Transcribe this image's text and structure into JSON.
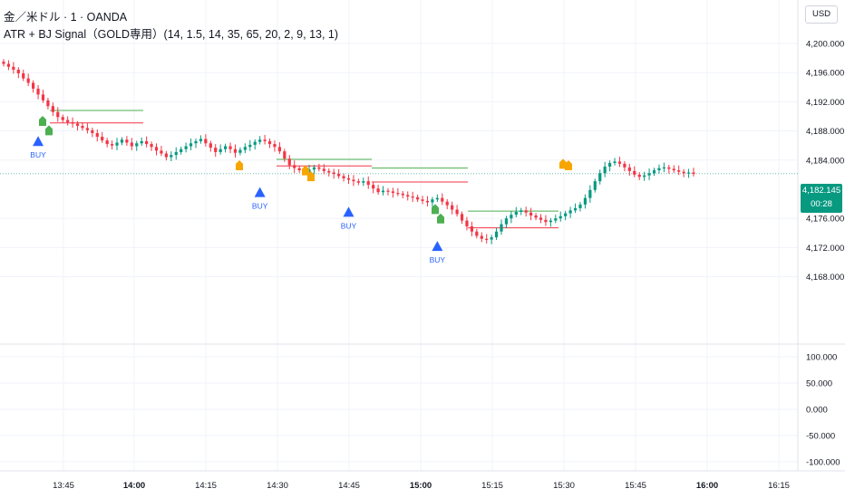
{
  "header": {
    "symbol_line": "金／米ドル · 1 · OANDA",
    "indicator_line": "ATR + BJ Signal（GOLD専用）(14, 1.5, 14, 35, 65, 20, 2, 9, 13, 1)"
  },
  "currency_button": "USD",
  "current_price": {
    "label": "4,182.145",
    "countdown": "00:28"
  },
  "colors": {
    "up": "#089981",
    "down": "#f23645",
    "buy": "#2962ff",
    "green_flag": "#4caf50",
    "orange_flag": "#f7a600"
  },
  "chart_data": {
    "type": "candlestick",
    "price_axis": {
      "ticks": [
        "4,200.000",
        "4,196.000",
        "4,192.000",
        "4,188.000",
        "4,184.000",
        "4,176.000",
        "4,172.000",
        "4,168.000"
      ],
      "tick_values": [
        4200,
        4196,
        4192,
        4188,
        4184,
        4176,
        4172,
        4168
      ]
    },
    "osc_axis": {
      "ticks": [
        "100.000",
        "50.000",
        "0.000",
        "-50.000",
        "-100.000"
      ],
      "tick_values": [
        100,
        50,
        0,
        -50,
        -100
      ]
    },
    "time_axis": {
      "ticks": [
        "13:45",
        "14:00",
        "14:15",
        "14:30",
        "14:45",
        "15:00",
        "15:15",
        "15:30",
        "15:45",
        "16:00",
        "16:15"
      ],
      "bold": [
        false,
        true,
        false,
        false,
        false,
        true,
        false,
        false,
        false,
        true,
        false
      ]
    },
    "close_path": [
      4197.2,
      4196.8,
      4196.4,
      4195.9,
      4195.2,
      4194.6,
      4193.8,
      4193.0,
      4192.2,
      4191.4,
      4190.6,
      4189.9,
      4189.5,
      4189.2,
      4189.0,
      4188.7,
      4188.4,
      4188.1,
      4187.7,
      4187.2,
      4186.7,
      4186.2,
      4186.0,
      4186.4,
      4186.8,
      4186.4,
      4185.9,
      4186.3,
      4186.6,
      4186.2,
      4185.8,
      4185.3,
      4184.9,
      4184.4,
      4184.7,
      4185.1,
      4185.5,
      4185.9,
      4186.3,
      4186.6,
      4186.9,
      4186.3,
      4185.7,
      4185.1,
      4185.5,
      4185.9,
      4185.5,
      4185.0,
      4185.4,
      4185.8,
      4186.1,
      4186.5,
      4186.8,
      4186.6,
      4186.2,
      4185.8,
      4185.2,
      4184.2,
      4183.3,
      4182.9,
      4182.6,
      4182.4,
      4182.7,
      4183.0,
      4182.8,
      4182.5,
      4182.3,
      4182.1,
      4181.8,
      4181.5,
      4181.3,
      4181.1,
      4180.9,
      4181.1,
      4180.6,
      4180.1,
      4179.6,
      4179.8,
      4179.7,
      4179.5,
      4179.4,
      4179.2,
      4179.0,
      4178.9,
      4178.6,
      4178.4,
      4178.2,
      4178.6,
      4178.8,
      4178.3,
      4177.8,
      4177.2,
      4176.6,
      4175.7,
      4174.9,
      4174.2,
      4173.6,
      4173.2,
      4173.1,
      4173.4,
      4174.2,
      4175.2,
      4176.0,
      4176.5,
      4176.9,
      4177.1,
      4176.8,
      4176.4,
      4176.1,
      4175.8,
      4175.5,
      4175.7,
      4176.0,
      4176.3,
      4176.7,
      4177.1,
      4177.4,
      4177.9,
      4178.8,
      4179.9,
      4181.1,
      4182.2,
      4183.1,
      4183.6,
      4183.8,
      4183.5,
      4183.0,
      4182.5,
      4182.0,
      4181.7,
      4181.9,
      4182.2,
      4182.6,
      4182.9,
      4183.0,
      4182.8,
      4182.6,
      4182.4,
      4182.2,
      4182.3,
      4182.1
    ],
    "signals": [
      {
        "type": "buy_arrow",
        "label": "BUY",
        "time_index": 7,
        "price": 4187.3
      },
      {
        "type": "buy_arrow",
        "label": "BUY",
        "time_index": 52,
        "price": 4180.3
      },
      {
        "type": "buy_arrow",
        "label": "BUY",
        "time_index": 70,
        "price": 4177.6
      },
      {
        "type": "buy_arrow",
        "label": "BUY",
        "time_index": 88,
        "price": 4172.9
      }
    ],
    "current_price_value": 4182.145
  }
}
